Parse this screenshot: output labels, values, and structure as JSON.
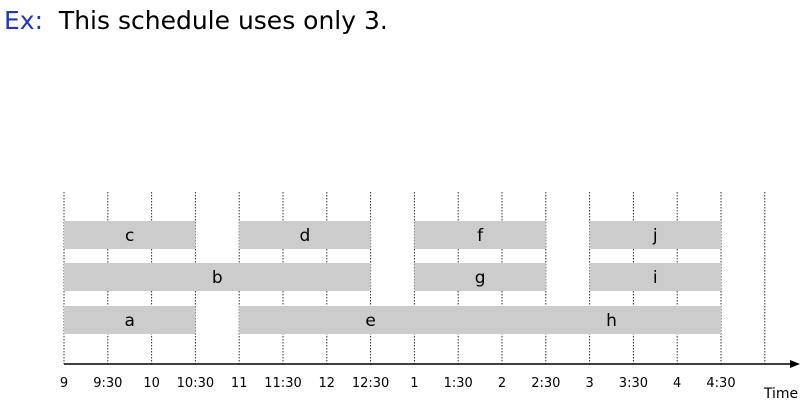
{
  "heading": {
    "prefix": "Ex:",
    "text": "This schedule uses only 3."
  },
  "chart_data": {
    "type": "gantt",
    "xlabel": "Time",
    "ticks": [
      "9",
      "9:30",
      "10",
      "10:30",
      "11",
      "11:30",
      "12",
      "12:30",
      "1",
      "1:30",
      "2",
      "2:30",
      "3",
      "3:30",
      "4",
      "4:30"
    ],
    "x_range": [
      "9:00",
      "5:00"
    ],
    "rows": 3,
    "jobs": [
      {
        "label": "c",
        "row": 3,
        "start": "9:00",
        "end": "10:30"
      },
      {
        "label": "d",
        "row": 3,
        "start": "11:00",
        "end": "12:30"
      },
      {
        "label": "f",
        "row": 3,
        "start": "1:00",
        "end": "2:30"
      },
      {
        "label": "j",
        "row": 3,
        "start": "3:00",
        "end": "4:30"
      },
      {
        "label": "b",
        "row": 2,
        "start": "9:00",
        "end": "12:30"
      },
      {
        "label": "g",
        "row": 2,
        "start": "1:00",
        "end": "2:30"
      },
      {
        "label": "i",
        "row": 2,
        "start": "3:00",
        "end": "4:30"
      },
      {
        "label": "a",
        "row": 1,
        "start": "9:00",
        "end": "10:30"
      },
      {
        "label": "e",
        "row": 1,
        "start": "11:00",
        "end": "2:00"
      },
      {
        "label": "h",
        "row": 1,
        "start": "2:00",
        "end": "4:30"
      }
    ],
    "colors": {
      "bar": "#cccccc",
      "grid": "#333333",
      "heading_prefix": "#1f35c9"
    }
  }
}
